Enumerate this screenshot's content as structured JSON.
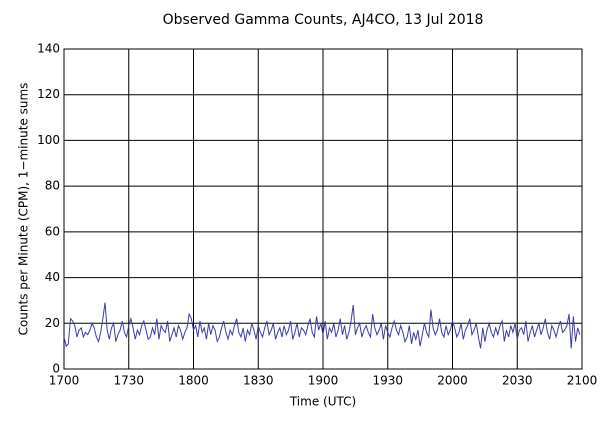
{
  "chart_data": {
    "type": "line",
    "title": "Observed Gamma Counts, AJ4CO, 13 Jul 2018",
    "x_label": "Time (UTC)",
    "y_label": "Counts per Minute (CPM), 1−minute sums",
    "xlim": [
      0,
      240
    ],
    "xticks": [
      {
        "value": 0,
        "label": "1700"
      },
      {
        "value": 30,
        "label": "1730"
      },
      {
        "value": 60,
        "label": "1800"
      },
      {
        "value": 90,
        "label": "1830"
      },
      {
        "value": 120,
        "label": "1900"
      },
      {
        "value": 150,
        "label": "1930"
      },
      {
        "value": 180,
        "label": "2000"
      },
      {
        "value": 210,
        "label": "2030"
      },
      {
        "value": 240,
        "label": "2100"
      }
    ],
    "ylim": [
      0,
      140
    ],
    "yticks": [
      0,
      20,
      40,
      60,
      80,
      100,
      120,
      140
    ],
    "grid": true,
    "x": [
      0,
      1,
      2,
      3,
      4,
      5,
      6,
      7,
      8,
      9,
      10,
      11,
      12,
      13,
      14,
      15,
      16,
      17,
      18,
      19,
      20,
      21,
      22,
      23,
      24,
      25,
      26,
      27,
      28,
      29,
      30,
      31,
      32,
      33,
      34,
      35,
      36,
      37,
      38,
      39,
      40,
      41,
      42,
      43,
      44,
      45,
      46,
      47,
      48,
      49,
      50,
      51,
      52,
      53,
      54,
      55,
      56,
      57,
      58,
      59,
      60,
      61,
      62,
      63,
      64,
      65,
      66,
      67,
      68,
      69,
      70,
      71,
      72,
      73,
      74,
      75,
      76,
      77,
      78,
      79,
      80,
      81,
      82,
      83,
      84,
      85,
      86,
      87,
      88,
      89,
      90,
      91,
      92,
      93,
      94,
      95,
      96,
      97,
      98,
      99,
      100,
      101,
      102,
      103,
      104,
      105,
      106,
      107,
      108,
      109,
      110,
      111,
      112,
      113,
      114,
      115,
      116,
      117,
      118,
      119,
      120,
      121,
      122,
      123,
      124,
      125,
      126,
      127,
      128,
      129,
      130,
      131,
      132,
      133,
      134,
      135,
      136,
      137,
      138,
      139,
      140,
      141,
      142,
      143,
      144,
      145,
      146,
      147,
      148,
      149,
      150,
      151,
      152,
      153,
      154,
      155,
      156,
      157,
      158,
      159,
      160,
      161,
      162,
      163,
      164,
      165,
      166,
      167,
      168,
      169,
      170,
      171,
      172,
      173,
      174,
      175,
      176,
      177,
      178,
      179,
      180,
      181,
      182,
      183,
      184,
      185,
      186,
      187,
      188,
      189,
      190,
      191,
      192,
      193,
      194,
      195,
      196,
      197,
      198,
      199,
      200,
      201,
      202,
      203,
      204,
      205,
      206,
      207,
      208,
      209,
      210,
      211,
      212,
      213,
      214,
      215,
      216,
      217,
      218,
      219,
      220,
      221,
      222,
      223,
      224,
      225,
      226,
      227,
      228,
      229,
      230,
      231,
      232,
      233,
      234,
      235,
      236,
      237,
      238,
      239
    ],
    "series": [
      {
        "color": "#3c3ca8",
        "values": [
          14,
          10,
          11,
          22,
          21,
          19,
          14,
          17,
          18,
          14,
          16,
          15,
          17,
          20,
          18,
          14,
          12,
          16,
          22,
          29,
          17,
          13,
          18,
          20,
          12,
          15,
          17,
          21,
          16,
          14,
          19,
          22,
          18,
          13,
          17,
          15,
          19,
          21,
          17,
          13,
          14,
          18,
          15,
          22,
          13,
          19,
          17,
          16,
          21,
          12,
          15,
          18,
          14,
          19,
          17,
          13,
          16,
          18,
          24,
          22,
          17,
          19,
          14,
          21,
          16,
          18,
          13,
          20,
          15,
          19,
          17,
          12,
          14,
          18,
          21,
          16,
          13,
          17,
          15,
          19,
          22,
          16,
          14,
          18,
          12,
          17,
          15,
          20,
          17,
          13,
          19,
          16,
          14,
          18,
          21,
          15,
          17,
          20,
          13,
          16,
          18,
          14,
          19,
          15,
          17,
          21,
          13,
          16,
          20,
          14,
          18,
          17,
          15,
          19,
          22,
          16,
          14,
          23,
          17,
          20,
          15,
          21,
          13,
          18,
          16,
          20,
          14,
          17,
          22,
          15,
          19,
          13,
          16,
          21,
          28,
          15,
          18,
          20,
          14,
          17,
          19,
          16,
          14,
          24,
          18,
          15,
          17,
          20,
          13,
          19,
          16,
          14,
          18,
          21,
          17,
          15,
          19,
          16,
          12,
          14,
          19,
          11,
          16,
          13,
          17,
          10,
          15,
          20,
          16,
          14,
          26,
          18,
          15,
          17,
          22,
          16,
          14,
          19,
          15,
          17,
          21,
          18,
          14,
          16,
          20,
          13,
          17,
          19,
          22,
          15,
          17,
          20,
          14,
          9,
          18,
          12,
          17,
          20,
          16,
          14,
          18,
          15,
          19,
          21,
          12,
          17,
          14,
          19,
          16,
          20,
          13,
          17,
          18,
          15,
          21,
          12,
          16,
          19,
          14,
          17,
          20,
          15,
          18,
          22,
          16,
          13,
          19,
          17,
          14,
          18,
          21,
          16,
          17,
          19,
          24,
          9,
          23,
          12,
          18,
          15
        ]
      }
    ]
  }
}
